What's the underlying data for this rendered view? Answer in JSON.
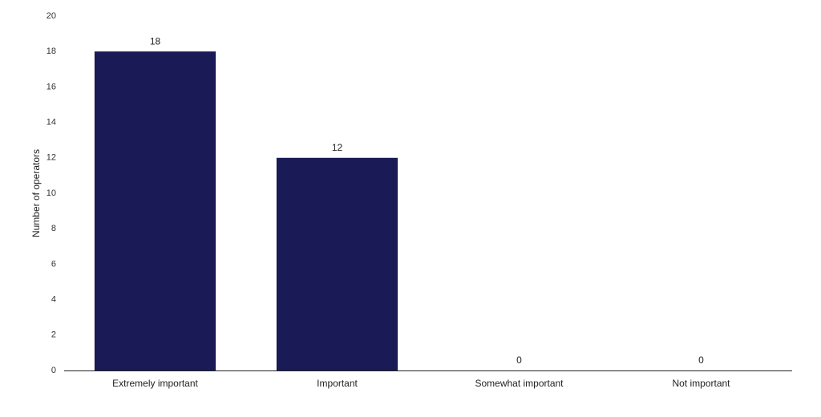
{
  "chart_data": {
    "type": "bar",
    "y_label": "Number of operators",
    "categories": [
      "Extremely important",
      "Important",
      "Somewhat important",
      "Not important"
    ],
    "values": [
      18,
      12,
      0,
      0
    ],
    "color": "#1a1a56",
    "ylim": [
      0,
      20
    ],
    "yticks": [
      0,
      2,
      4,
      6,
      8,
      10,
      12,
      14,
      16,
      18,
      20
    ],
    "grid": false,
    "data_labels": true
  }
}
